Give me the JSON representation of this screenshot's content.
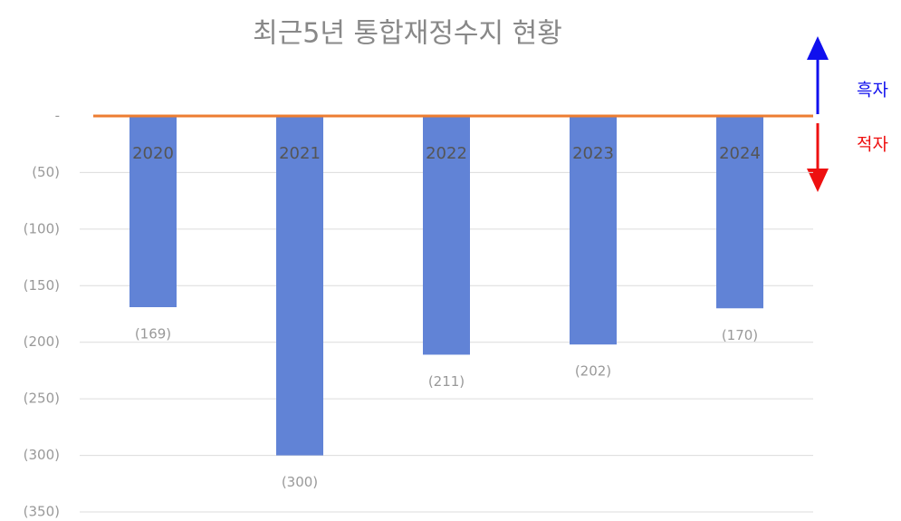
{
  "chart_data": {
    "type": "bar",
    "title": "최근5년 통합재정수지 현황",
    "categories": [
      "2020",
      "2021",
      "2022",
      "2023",
      "2024"
    ],
    "values": [
      -169,
      -300,
      -211,
      -202,
      -170
    ],
    "value_labels": [
      "(169)",
      "(300)",
      "(211)",
      "(202)",
      "(170)"
    ],
    "color": "#6183d6",
    "ylim": [
      -350,
      0
    ],
    "yticks": [
      {
        "value": 0,
        "label": "-"
      },
      {
        "value": -50,
        "label": "(50)"
      },
      {
        "value": -100,
        "label": "(100)"
      },
      {
        "value": -150,
        "label": "(150)"
      },
      {
        "value": -200,
        "label": "(200)"
      },
      {
        "value": -250,
        "label": "(250)"
      },
      {
        "value": -300,
        "label": "(300)"
      },
      {
        "value": -350,
        "label": "(350)"
      }
    ],
    "grid": true,
    "zero_line_color": "#ed7d31",
    "annotations": [
      "흑자",
      "적자"
    ]
  }
}
